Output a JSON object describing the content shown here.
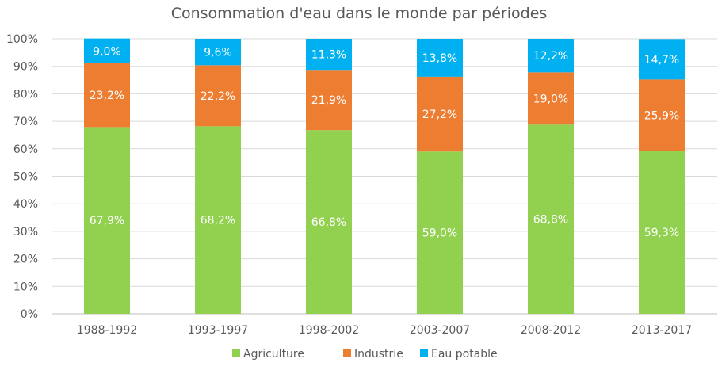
{
  "chart_data": {
    "type": "bar",
    "stacked": true,
    "title": "Consommation d'eau dans le monde par périodes",
    "categories": [
      "1988-1992",
      "1993-1997",
      "1998-2002",
      "2003-2007",
      "2008-2012",
      "2013-2017"
    ],
    "series": [
      {
        "name": "Agriculture",
        "color": "#92d050",
        "values": [
          67.9,
          68.2,
          66.8,
          59.0,
          68.8,
          59.3
        ],
        "labels": [
          "67,9%",
          "68,2%",
          "66,8%",
          "59,0%",
          "68,8%",
          "59,3%"
        ]
      },
      {
        "name": "Industrie",
        "color": "#ed7d31",
        "values": [
          23.2,
          22.2,
          21.9,
          27.2,
          19.0,
          25.9
        ],
        "labels": [
          "23,2%",
          "22,2%",
          "21,9%",
          "27,2%",
          "19,0%",
          "25,9%"
        ]
      },
      {
        "name": "Eau potable",
        "color": "#00b0f0",
        "values": [
          9.0,
          9.6,
          11.3,
          13.8,
          12.2,
          14.7
        ],
        "labels": [
          "9,0%",
          "9,6%",
          "11,3%",
          "13,8%",
          "12,2%",
          "14,7%"
        ]
      }
    ],
    "yticks": [
      "0%",
      "10%",
      "20%",
      "30%",
      "40%",
      "50%",
      "60%",
      "70%",
      "80%",
      "90%",
      "100%"
    ],
    "ylim": [
      0,
      100
    ],
    "grid": true,
    "legend": "bottom"
  }
}
